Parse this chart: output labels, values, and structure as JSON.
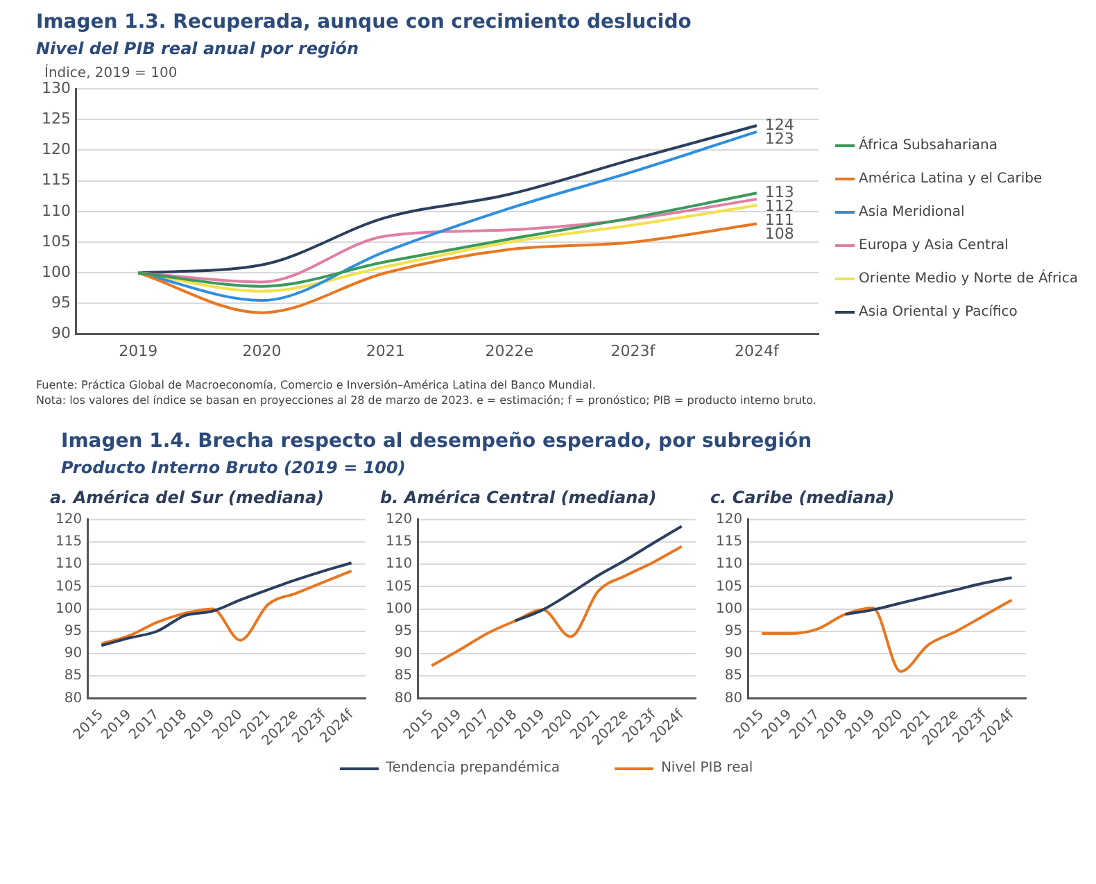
{
  "chart_data": [
    {
      "type": "line",
      "title": "Imagen 1.3. Recuperada, aunque con crecimiento deslucido",
      "subtitle": "Nivel del PIB real anual por región",
      "ylabel": "Índice, 2019 = 100",
      "categories": [
        "2019",
        "2020",
        "2021",
        "2022e",
        "2023f",
        "2024f"
      ],
      "series": [
        {
          "name": "África Subsahariana",
          "color": "#3a9a5b",
          "values": [
            100,
            97.8,
            101.8,
            105.5,
            109,
            113
          ],
          "value_labels": [
            null,
            null,
            null,
            null,
            null,
            "113"
          ]
        },
        {
          "name": "América Latina y el Caribe",
          "color": "#e87722",
          "values": [
            100,
            93.5,
            100,
            103.8,
            105,
            108
          ],
          "value_labels": [
            null,
            null,
            null,
            null,
            null,
            "108"
          ]
        },
        {
          "name": "Asia Meridional",
          "color": "#2f8fdf",
          "values": [
            100,
            95.5,
            103.5,
            110.5,
            116.5,
            123
          ],
          "value_labels": [
            null,
            null,
            null,
            null,
            null,
            "123"
          ]
        },
        {
          "name": "Europa y Asia Central",
          "color": "#e07fa5",
          "values": [
            100,
            98.5,
            106,
            107,
            108.8,
            112
          ],
          "value_labels": [
            null,
            null,
            null,
            null,
            null,
            "112"
          ]
        },
        {
          "name": "Oriente Medio y Norte de África",
          "color": "#f2e14c",
          "values": [
            100,
            97,
            101,
            105,
            107.8,
            111
          ],
          "value_labels": [
            null,
            null,
            null,
            null,
            null,
            "111"
          ]
        },
        {
          "name": "Asia Oriental y Pacífico",
          "color": "#2b3f5f",
          "values": [
            100,
            101.3,
            109,
            112.8,
            118.5,
            124
          ],
          "value_labels": [
            null,
            null,
            null,
            null,
            null,
            "124"
          ]
        }
      ],
      "ylim": [
        90,
        130
      ],
      "yticks": [
        90,
        95,
        100,
        105,
        110,
        115,
        120,
        125,
        130
      ],
      "grid": "y",
      "legend": "right",
      "marker": "none",
      "line_style": "solid",
      "annotations": [
        "Fuente: Práctica Global de Macroeconomía, Comercio e Inversión–América Latina del Banco Mundial.",
        "Nota: los valores del índice se basan en proyecciones al 28 de marzo de 2023. e = estimación; f = pronóstico; PIB = producto interno bruto."
      ]
    },
    {
      "type": "line",
      "title": "a. América del Sur (mediana)",
      "categories": [
        "2015",
        "2019",
        "2017",
        "2018",
        "2019",
        "2020",
        "2021",
        "2022e",
        "2023f",
        "2024f"
      ],
      "series": [
        {
          "name": "Tendencia prepandémica",
          "color": "#2b3f5f",
          "values": [
            91.8,
            93.5,
            95,
            98.5,
            99.5,
            102,
            104.3,
            106.5,
            108.5,
            110.3
          ]
        },
        {
          "name": "Nivel PIB real",
          "color": "#e87722",
          "values": [
            92.2,
            94,
            97,
            99,
            100,
            93,
            101,
            103.5,
            106,
            108.5
          ]
        }
      ],
      "ylim": [
        80,
        120
      ],
      "yticks": [
        80,
        85,
        90,
        95,
        100,
        105,
        110,
        115,
        120
      ],
      "grid": "y",
      "legend": "bottom",
      "marker": "none",
      "line_style": "solid",
      "annotations": [
        "Imagen 1.4. Brecha respecto al desempeño esperado, por subregión",
        "Producto Interno Bruto (2019 = 100)"
      ]
    },
    {
      "type": "line",
      "title": "b. América Central (mediana)",
      "categories": [
        "2015",
        "2019",
        "2017",
        "2018",
        "2019",
        "2020",
        "2021",
        "2022e",
        "2023f",
        "2024f"
      ],
      "series": [
        {
          "color": "#2b3f5f",
          "values": [
            null,
            null,
            null,
            97.3,
            99.8,
            103.5,
            107.5,
            111,
            114.8,
            118.5
          ]
        },
        {
          "color": "#e87722",
          "values": [
            87.3,
            90.8,
            94.5,
            97.3,
            99.8,
            93.8,
            104,
            107.5,
            110.5,
            114
          ]
        }
      ],
      "ylim": [
        80,
        120
      ],
      "yticks": [
        80,
        85,
        90,
        95,
        100,
        105,
        110,
        115,
        120
      ],
      "grid": "y",
      "marker": "none",
      "line_style": "solid"
    },
    {
      "type": "line",
      "title": "c. Caribe (mediana)",
      "categories": [
        "2015",
        "2019",
        "2017",
        "2018",
        "2019",
        "2020",
        "2021",
        "2022e",
        "2023f",
        "2024f"
      ],
      "series": [
        {
          "color": "#2b3f5f",
          "values": [
            null,
            null,
            null,
            98.8,
            99.8,
            101.3,
            102.8,
            104.3,
            105.8,
            107
          ]
        },
        {
          "color": "#e87722",
          "values": [
            94.5,
            94.5,
            95.5,
            98.8,
            100.2,
            86,
            92,
            95,
            98.5,
            102
          ]
        }
      ],
      "ylim": [
        80,
        120
      ],
      "yticks": [
        80,
        85,
        90,
        95,
        100,
        105,
        110,
        115,
        120
      ],
      "grid": "y",
      "marker": "none",
      "line_style": "solid"
    }
  ]
}
